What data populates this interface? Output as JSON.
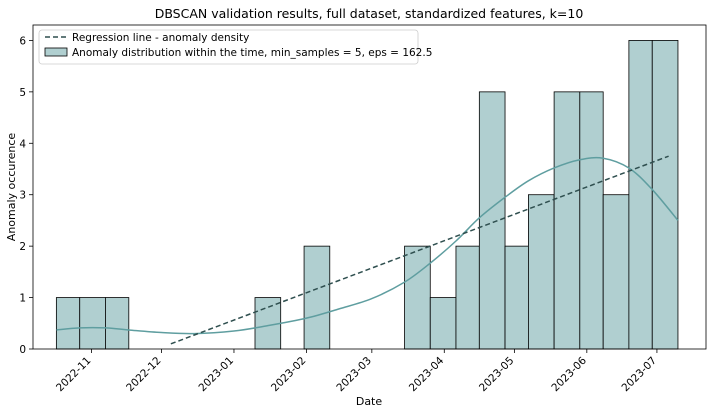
{
  "chart_data": {
    "type": "bar",
    "title": "DBSCAN validation results, full dataset, standardized features, k=10",
    "xlabel": "Date",
    "ylabel": "Anomaly occurence",
    "ylim": [
      0,
      6.3
    ],
    "xlim": [
      "2022-10-07",
      "2023-07-22"
    ],
    "grid": false,
    "legend_position": "top-left",
    "x_ticks": [
      "2022-11",
      "2022-12",
      "2023-01",
      "2023-02",
      "2023-03",
      "2023-04",
      "2023-05",
      "2023-06",
      "2023-07"
    ],
    "x_tick_dates": [
      "2022-11-01",
      "2022-12-01",
      "2023-01-01",
      "2023-02-01",
      "2023-03-01",
      "2023-04-01",
      "2023-05-01",
      "2023-06-01",
      "2023-07-01"
    ],
    "y_ticks": [
      "0",
      "1",
      "2",
      "3",
      "4",
      "5",
      "6"
    ],
    "bins": [
      {
        "start": "2022-10-17",
        "end": "2022-10-27",
        "count": 1
      },
      {
        "start": "2022-10-27",
        "end": "2022-11-07",
        "count": 1
      },
      {
        "start": "2022-11-07",
        "end": "2022-11-17",
        "count": 1
      },
      {
        "start": "2023-01-10",
        "end": "2023-01-21",
        "count": 1
      },
      {
        "start": "2023-01-31",
        "end": "2023-02-11",
        "count": 2
      },
      {
        "start": "2023-03-15",
        "end": "2023-03-26",
        "count": 2
      },
      {
        "start": "2023-03-26",
        "end": "2023-04-06",
        "count": 1
      },
      {
        "start": "2023-04-06",
        "end": "2023-04-16",
        "count": 2
      },
      {
        "start": "2023-04-16",
        "end": "2023-04-27",
        "count": 5
      },
      {
        "start": "2023-04-27",
        "end": "2023-05-07",
        "count": 2
      },
      {
        "start": "2023-05-07",
        "end": "2023-05-18",
        "count": 3
      },
      {
        "start": "2023-05-18",
        "end": "2023-05-29",
        "count": 5
      },
      {
        "start": "2023-05-29",
        "end": "2023-06-08",
        "count": 5
      },
      {
        "start": "2023-06-08",
        "end": "2023-06-19",
        "count": 3
      },
      {
        "start": "2023-06-19",
        "end": "2023-06-29",
        "count": 6
      },
      {
        "start": "2023-06-29",
        "end": "2023-07-10",
        "count": 6
      }
    ],
    "series": [
      {
        "name": "Regression line - anomaly density",
        "type": "line",
        "style": "dashed",
        "color": "#2f4f4f",
        "x": [
          "2022-12-05",
          "2023-07-06"
        ],
        "y": [
          0.1,
          3.75
        ]
      },
      {
        "name": "Anomaly distribution within the time, min_samples = 5, eps = 162.5",
        "type": "histogram",
        "color": "#5f9ea0",
        "fill": "#b0cfd0"
      },
      {
        "type": "kde",
        "color": "#5f9ea0",
        "x": [
          "2022-10-17",
          "2022-10-27",
          "2022-11-07",
          "2022-11-17",
          "2022-12-01",
          "2022-12-15",
          "2023-01-01",
          "2023-01-15",
          "2023-02-01",
          "2023-02-15",
          "2023-03-01",
          "2023-03-15",
          "2023-03-26",
          "2023-04-06",
          "2023-04-16",
          "2023-04-27",
          "2023-05-07",
          "2023-05-18",
          "2023-05-29",
          "2023-06-08",
          "2023-06-19",
          "2023-06-29",
          "2023-07-10"
        ],
        "y": [
          0.37,
          0.41,
          0.41,
          0.37,
          0.32,
          0.3,
          0.35,
          0.45,
          0.6,
          0.78,
          0.98,
          1.3,
          1.67,
          2.1,
          2.55,
          2.95,
          3.27,
          3.52,
          3.68,
          3.71,
          3.52,
          3.1,
          2.5
        ]
      }
    ]
  }
}
